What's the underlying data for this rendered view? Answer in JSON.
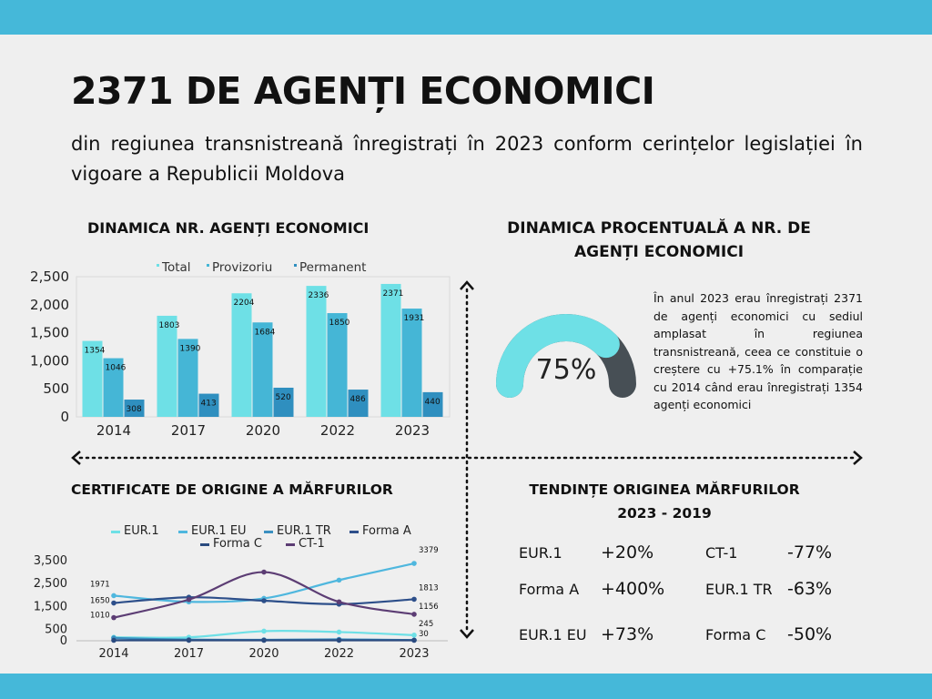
{
  "title": "2371 DE AGENȚI ECONOMICI",
  "subtitle": "din regiunea transnistreană înregistrați în 2023 conform cerințelor legislației în vigoare a Republicii Moldova",
  "colors": {
    "band": "#45b8d9",
    "total": "#6ee0e6",
    "provizoriu": "#45b6d6",
    "permanent": "#2f8fbf",
    "gauge_fill": "#6ee0e6",
    "gauge_rest": "#474f55"
  },
  "bar_section_title": "DINAMICA NR. AGENȚI ECONOMICI",
  "gauge_section_title": "DINAMICA PROCENTUALĂ A NR. DE AGENȚI ECONOMICI",
  "gauge": {
    "value_label": "75%",
    "value": 75
  },
  "gauge_description": "În anul 2023 erau înregistrați 2371 de agenți economici cu sediul amplasat în regiunea transnistreană, ceea ce constituie o creștere cu +75.1% în comparație cu 2014 când erau înregistrați 1354 agenți economici",
  "cert_section_title": "CERTIFICATE DE ORIGINE A MĂRFURILOR",
  "trend_section_title": "TENDINȚE ORIGINEA MĂRFURILOR 2023 - 2019",
  "trends": [
    {
      "name": "EUR.1",
      "value": "+20%"
    },
    {
      "name": "CT-1",
      "value": "-77%"
    },
    {
      "name": "Forma A",
      "value": "+400%"
    },
    {
      "name": "EUR.1 TR",
      "value": "-63%"
    },
    {
      "name": "EUR.1 EU",
      "value": "+73%"
    },
    {
      "name": "Forma C",
      "value": "-50%"
    }
  ],
  "chart_data": [
    {
      "type": "bar",
      "categories": [
        "2014",
        "2017",
        "2020",
        "2022",
        "2023"
      ],
      "series": [
        {
          "name": "Total",
          "values": [
            1354,
            1803,
            2204,
            2336,
            2371
          ]
        },
        {
          "name": "Provizoriu",
          "values": [
            1046,
            1390,
            1684,
            1850,
            1931
          ]
        },
        {
          "name": "Permanent",
          "values": [
            308,
            413,
            520,
            486,
            440
          ]
        }
      ],
      "ylim": [
        0,
        2500
      ],
      "yticks": [
        "0",
        "500",
        "1,000",
        "1,500",
        "2,000",
        "2,500"
      ],
      "legend": "top",
      "grid": false
    },
    {
      "type": "line",
      "categories": [
        "2014",
        "2017",
        "2020",
        "2022",
        "2023"
      ],
      "series": [
        {
          "name": "EUR.1",
          "values": [
            150,
            150,
            420,
            380,
            245
          ]
        },
        {
          "name": "EUR.1 EU",
          "values": [
            1971,
            1700,
            1850,
            2650,
            3379
          ]
        },
        {
          "name": "EUR.1 TR",
          "values": [
            120,
            50,
            40,
            60,
            30
          ]
        },
        {
          "name": "Forma A",
          "values": [
            1650,
            1900,
            1750,
            1600,
            1813
          ]
        },
        {
          "name": "Forma C",
          "values": [
            20,
            20,
            20,
            20,
            20
          ]
        },
        {
          "name": "CT-1",
          "values": [
            1010,
            1800,
            3000,
            1700,
            1156
          ]
        }
      ],
      "point_labels": [
        {
          "series": "EUR.1 EU",
          "index": 0,
          "text": "1971"
        },
        {
          "series": "Forma A",
          "index": 0,
          "text": "1650"
        },
        {
          "series": "CT-1",
          "index": 0,
          "text": "1010"
        },
        {
          "series": "EUR.1 EU",
          "index": 4,
          "text": "3379"
        },
        {
          "series": "Forma A",
          "index": 4,
          "text": "1813"
        },
        {
          "series": "CT-1",
          "index": 4,
          "text": "1156"
        },
        {
          "series": "EUR.1",
          "index": 4,
          "text": "245"
        },
        {
          "series": "EUR.1 TR",
          "index": 4,
          "text": "30"
        }
      ],
      "ylim": [
        0,
        3500
      ],
      "yticks": [
        "0",
        "500",
        "1,500",
        "2,500",
        "3,500"
      ],
      "legend": "top",
      "grid": false
    }
  ]
}
